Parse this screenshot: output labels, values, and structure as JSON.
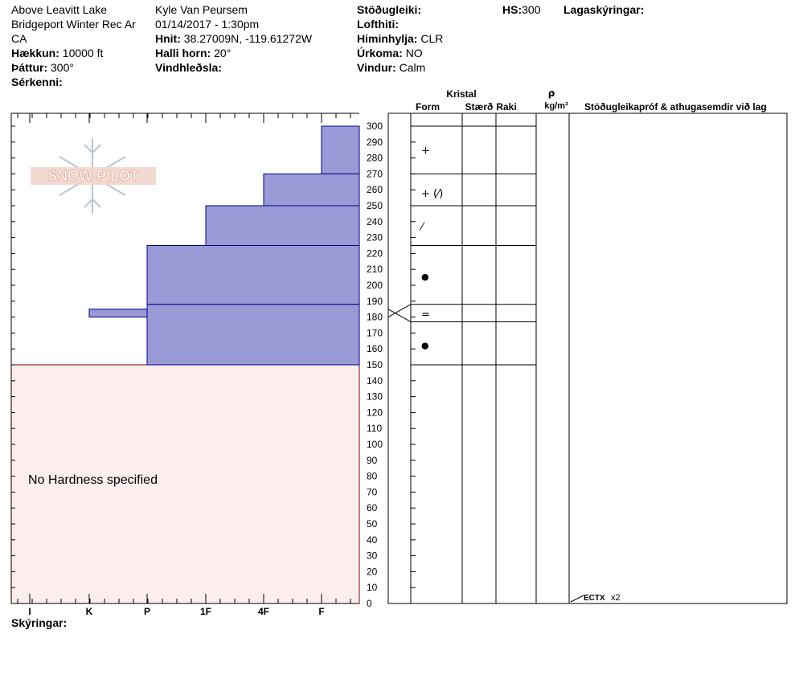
{
  "header": {
    "location": "Above Leavitt Lake",
    "area": "Bridgeport Winter Rec Ar",
    "state": "CA",
    "elevation_label": "Hækkun:",
    "elevation_value": "10000 ft",
    "aspect_label": "Þáttur:",
    "aspect_value": "300°",
    "specifics_label": "Sérkenni:",
    "observer": "Kyle Van Peursem",
    "datetime": "01/14/2017 - 1:30pm",
    "coords_label": "Hnit:",
    "coords_value": "38.27009N, -119.61272W",
    "slope_label": "Halli horn:",
    "slope_value": "20°",
    "wind_loading_label": "Vindhleðsla:",
    "stability_label": "Stöðugleiki:",
    "air_temp_label": "Lofthiti:",
    "sky_label": "Himinhylja:",
    "sky_value": "CLR",
    "precip_label": "Úrkoma:",
    "precip_value": "NO",
    "wind_label": "Vindur:",
    "wind_value": "Calm",
    "hs_label": "HS:",
    "hs_value": "300",
    "layer_notes_label": "Lagaskýringar:"
  },
  "logo_text": "SNOW PILOT",
  "no_hardness_text": "No Hardness specified",
  "notes_label": "Skýringar:",
  "table_headers": {
    "crystal": "Kristal",
    "form": "Form",
    "size": "Stærð",
    "moisture": "Raki",
    "rho": "ρ",
    "density_unit": "kg/m³",
    "comments": "Stöðugleikapróf & athugasemdir við lag"
  },
  "test_result": {
    "label": "ECTX",
    "value": "x2",
    "depth": 0
  },
  "colors": {
    "layer_fill": "#9a9ad6",
    "layer_stroke": "#00008b",
    "no_hardness_fill": "#fdeeee",
    "no_hardness_stroke": "#8b0000"
  },
  "chart_data": {
    "type": "bar",
    "y_axis": {
      "min": 0,
      "max": 300,
      "ticks": [
        0,
        10,
        20,
        30,
        40,
        50,
        60,
        70,
        80,
        90,
        100,
        110,
        120,
        130,
        140,
        150,
        160,
        170,
        180,
        190,
        200,
        210,
        220,
        230,
        240,
        250,
        260,
        270,
        280,
        290,
        300
      ]
    },
    "x_categories": [
      "I",
      "K",
      "P",
      "1F",
      "4F",
      "F"
    ],
    "layers": [
      {
        "top": 300,
        "bottom": 270,
        "hardness": "F"
      },
      {
        "top": 270,
        "bottom": 250,
        "hardness": "4F"
      },
      {
        "top": 250,
        "bottom": 225,
        "hardness": "1F"
      },
      {
        "top": 225,
        "bottom": 188,
        "hardness": "P"
      },
      {
        "top": 185,
        "bottom": 180,
        "hardness": "K"
      },
      {
        "top": 188,
        "bottom": 150,
        "hardness": "P"
      }
    ],
    "table_boundaries": [
      300,
      270,
      250,
      225,
      188,
      177,
      150
    ],
    "crystal_forms": [
      {
        "depth": 285,
        "symbol": "+"
      },
      {
        "depth": 258,
        "symbol": "+ (⁄)"
      },
      {
        "depth": 237,
        "symbol": "⁄"
      },
      {
        "depth": 206,
        "symbol": "●"
      },
      {
        "depth": 182,
        "symbol": "="
      },
      {
        "depth": 163,
        "symbol": "●"
      }
    ],
    "no_hardness_range": [
      0,
      150
    ]
  }
}
